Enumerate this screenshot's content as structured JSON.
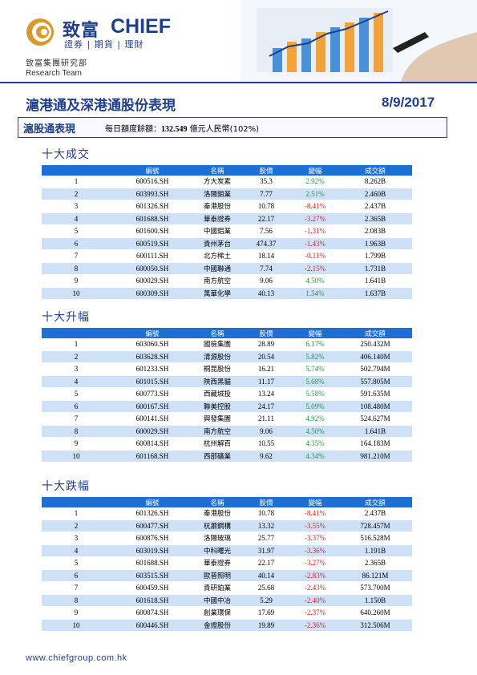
{
  "header": {
    "brand_cn": "致富",
    "brand_en": "CHIEF",
    "tagline": "證券 | 期貨 | 理財",
    "dept_cn": "致富集團研究部",
    "dept_en": "Research Team"
  },
  "title": "滬港通及深港通股份表現",
  "date": "8/9/2017",
  "quota": {
    "label": "滬股通表現",
    "prefix": "每日額度餘額：",
    "value": "132.549",
    "suffix": " 億元人民幣(102%)"
  },
  "columns": [
    "編號",
    "名稱",
    "股價",
    "變幅",
    "成交額"
  ],
  "colors": {
    "brand": "#1f3f8c",
    "header_bar": "#1f6ed4",
    "alt_row": "#cfe1f7",
    "up": "#1d9a3b",
    "down": "#e02020"
  },
  "sections": [
    {
      "title": "十大成交",
      "rows": [
        [
          "1",
          "600516.SH",
          "方大炭素",
          "35.3",
          "2.92%",
          "8.262B"
        ],
        [
          "2",
          "603993.SH",
          "洛陽鉬業",
          "7.77",
          "2.51%",
          "2.460B"
        ],
        [
          "3",
          "601326.SH",
          "秦港股份",
          "10.78",
          "-8.41%",
          "2.437B"
        ],
        [
          "4",
          "601688.SH",
          "華泰證券",
          "22.17",
          "-3.27%",
          "2.365B"
        ],
        [
          "5",
          "601600.SH",
          "中國鋁業",
          "7.56",
          "-1.31%",
          "2.083B"
        ],
        [
          "6",
          "600519.SH",
          "貴州茅台",
          "474.37",
          "-1.43%",
          "1.963B"
        ],
        [
          "7",
          "600111.SH",
          "北方稀土",
          "18.14",
          "-0.11%",
          "1.799B"
        ],
        [
          "8",
          "600050.SH",
          "中國聯通",
          "7.74",
          "-2.15%",
          "1.731B"
        ],
        [
          "9",
          "600029.SH",
          "南方航空",
          "9.06",
          "4.50%",
          "1.641B"
        ],
        [
          "10",
          "600309.SH",
          "萬華化學",
          "40.13",
          "1.54%",
          "1.637B"
        ]
      ]
    },
    {
      "title": "十大升幅",
      "rows": [
        [
          "1",
          "603060.SH",
          "國檢集團",
          "28.89",
          "6.17%",
          "250.432M"
        ],
        [
          "2",
          "603628.SH",
          "清源股份",
          "20.54",
          "5.82%",
          "406.140M"
        ],
        [
          "3",
          "601233.SH",
          "桐昆股份",
          "16.21",
          "5.74%",
          "502.794M"
        ],
        [
          "4",
          "601015.SH",
          "陝西黑貓",
          "11.17",
          "5.68%",
          "557.805M"
        ],
        [
          "5",
          "600773.SH",
          "西藏城投",
          "13.24",
          "5.58%",
          "591.635M"
        ],
        [
          "6",
          "600167.SH",
          "聯美控股",
          "24.17",
          "5.09%",
          "108.480M"
        ],
        [
          "7",
          "600141.SH",
          "興發集團",
          "21.11",
          "4.92%",
          "524.627M"
        ],
        [
          "8",
          "600029.SH",
          "南方航空",
          "9.06",
          "4.50%",
          "1.641B"
        ],
        [
          "9",
          "600814.SH",
          "杭州解百",
          "10.55",
          "4.35%",
          "164.183M"
        ],
        [
          "10",
          "601168.SH",
          "西部礦業",
          "9.62",
          "4.34%",
          "981.210M"
        ]
      ]
    },
    {
      "title": "十大跌幅",
      "rows": [
        [
          "1",
          "601326.SH",
          "秦港股份",
          "10.78",
          "-8.41%",
          "2.437B"
        ],
        [
          "2",
          "600477.SH",
          "杭蕭鋼構",
          "13.32",
          "-3.55%",
          "728.457M"
        ],
        [
          "3",
          "600876.SH",
          "洛陽玻璃",
          "25.77",
          "-3.37%",
          "516.528M"
        ],
        [
          "4",
          "603019.SH",
          "中科曙光",
          "31.97",
          "-3.36%",
          "1.191B"
        ],
        [
          "5",
          "601688.SH",
          "華泰證券",
          "22.17",
          "-3.27%",
          "2.365B"
        ],
        [
          "6",
          "603515.SH",
          "歐普照明",
          "40.14",
          "-2.83%",
          "86.121M"
        ],
        [
          "7",
          "600459.SH",
          "貴研鉑業",
          "25.68",
          "-2.43%",
          "573.700M"
        ],
        [
          "8",
          "601618.SH",
          "中國中冶",
          "5.29",
          "-2.40%",
          "1.150B"
        ],
        [
          "9",
          "600874.SH",
          "創業環保",
          "17.69",
          "-2.37%",
          "640.260M"
        ],
        [
          "10",
          "600446.SH",
          "金證股份",
          "19.89",
          "-2.36%",
          "312.506M"
        ]
      ]
    }
  ],
  "footer": {
    "url": "www.chiefgroup.com.hk"
  }
}
